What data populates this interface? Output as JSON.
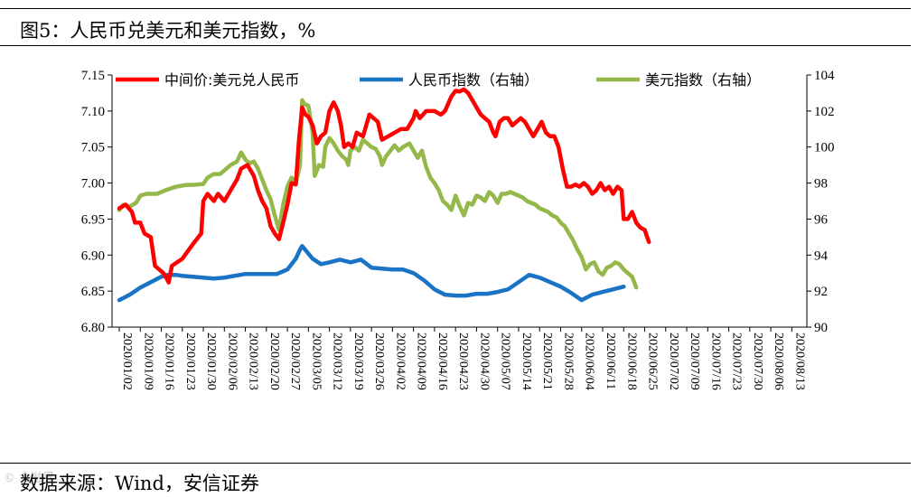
{
  "figure": {
    "title": "图5：人民币兑美元和美元指数，%",
    "source": "数据来源：Wind，安信证券",
    "watermark": "© 金融界"
  },
  "chart_data": {
    "type": "line",
    "title": "图5：人民币兑美元和美元指数，%",
    "y_left": {
      "min": 6.8,
      "max": 7.15,
      "ticks": [
        "6.80",
        "6.85",
        "6.90",
        "6.95",
        "7.00",
        "7.05",
        "7.10",
        "7.15"
      ]
    },
    "y_right": {
      "min": 90,
      "max": 104,
      "ticks": [
        "90",
        "92",
        "94",
        "96",
        "98",
        "100",
        "102",
        "104"
      ]
    },
    "x_ticks": [
      "2020/01/02",
      "2020/01/09",
      "2020/01/16",
      "2020/01/23",
      "2020/01/30",
      "2020/02/06",
      "2020/02/13",
      "2020/02/20",
      "2020/02/27",
      "2020/03/05",
      "2020/03/12",
      "2020/03/19",
      "2020/03/26",
      "2020/04/02",
      "2020/04/09",
      "2020/04/16",
      "2020/04/23",
      "2020/04/30",
      "2020/05/07",
      "2020/05/14",
      "2020/05/21",
      "2020/05/28",
      "2020/06/04",
      "2020/06/11",
      "2020/06/18",
      "2020/06/25",
      "2020/07/02",
      "2020/07/09",
      "2020/07/16",
      "2020/07/23",
      "2020/07/30",
      "2020/08/06",
      "2020/08/13"
    ],
    "series": [
      {
        "name": "中间价:美元兑人民币",
        "axis": "left",
        "color": "#ff0000",
        "points": [
          [
            0,
            6.965
          ],
          [
            0.3,
            6.97
          ],
          [
            0.6,
            6.96
          ],
          [
            0.75,
            6.945
          ],
          [
            1.0,
            6.945
          ],
          [
            1.2,
            6.93
          ],
          [
            1.5,
            6.925
          ],
          [
            1.7,
            6.885
          ],
          [
            1.9,
            6.88
          ],
          [
            2.1,
            6.875
          ],
          [
            2.25,
            6.868
          ],
          [
            2.35,
            6.862
          ],
          [
            2.5,
            6.885
          ],
          [
            3.0,
            6.895
          ],
          [
            3.5,
            6.915
          ],
          [
            3.9,
            6.93
          ],
          [
            4.0,
            6.975
          ],
          [
            4.2,
            6.985
          ],
          [
            4.5,
            6.975
          ],
          [
            4.7,
            6.985
          ],
          [
            5.0,
            6.975
          ],
          [
            5.3,
            6.99
          ],
          [
            5.6,
            7.005
          ],
          [
            5.8,
            7.02
          ],
          [
            6.1,
            7.025
          ],
          [
            6.4,
            7.01
          ],
          [
            6.6,
            6.99
          ],
          [
            6.8,
            6.975
          ],
          [
            7.0,
            6.965
          ],
          [
            7.2,
            6.94
          ],
          [
            7.4,
            6.93
          ],
          [
            7.6,
            6.922
          ],
          [
            7.8,
            6.945
          ],
          [
            8.0,
            6.97
          ],
          [
            8.2,
            7.0
          ],
          [
            8.4,
            6.998
          ],
          [
            8.55,
            7.06
          ],
          [
            8.7,
            7.105
          ],
          [
            8.85,
            7.095
          ],
          [
            9.0,
            7.092
          ],
          [
            9.2,
            7.08
          ],
          [
            9.4,
            7.055
          ],
          [
            9.6,
            7.065
          ],
          [
            9.8,
            7.07
          ],
          [
            10.0,
            7.1
          ],
          [
            10.2,
            7.112
          ],
          [
            10.4,
            7.1
          ],
          [
            10.55,
            7.08
          ],
          [
            10.7,
            7.05
          ],
          [
            10.9,
            7.055
          ],
          [
            11.1,
            7.05
          ],
          [
            11.3,
            7.07
          ],
          [
            11.6,
            7.065
          ],
          [
            11.9,
            7.095
          ],
          [
            12.1,
            7.09
          ],
          [
            12.3,
            7.085
          ],
          [
            12.5,
            7.06
          ],
          [
            12.8,
            7.065
          ],
          [
            13.1,
            7.07
          ],
          [
            13.4,
            7.075
          ],
          [
            13.7,
            7.075
          ],
          [
            14.0,
            7.09
          ],
          [
            14.1,
            7.1
          ],
          [
            14.3,
            7.09
          ],
          [
            14.6,
            7.1
          ],
          [
            15.0,
            7.1
          ],
          [
            15.3,
            7.095
          ],
          [
            15.5,
            7.1
          ],
          [
            15.8,
            7.12
          ],
          [
            16.0,
            7.128
          ],
          [
            16.2,
            7.127
          ],
          [
            16.4,
            7.13
          ],
          [
            16.6,
            7.125
          ],
          [
            16.8,
            7.115
          ],
          [
            17.0,
            7.105
          ],
          [
            17.2,
            7.095
          ],
          [
            17.4,
            7.09
          ],
          [
            17.6,
            7.085
          ],
          [
            17.8,
            7.07
          ],
          [
            17.9,
            7.065
          ],
          [
            18.1,
            7.085
          ],
          [
            18.3,
            7.09
          ],
          [
            18.5,
            7.09
          ],
          [
            18.7,
            7.08
          ],
          [
            18.9,
            7.085
          ],
          [
            19.1,
            7.09
          ],
          [
            19.3,
            7.085
          ],
          [
            19.5,
            7.075
          ],
          [
            19.7,
            7.065
          ],
          [
            19.9,
            7.075
          ],
          [
            20.1,
            7.085
          ],
          [
            20.3,
            7.07
          ],
          [
            20.5,
            7.065
          ],
          [
            20.7,
            7.065
          ],
          [
            20.9,
            7.05
          ],
          [
            21.1,
            7.02
          ],
          [
            21.3,
            6.995
          ],
          [
            21.5,
            6.995
          ],
          [
            21.7,
            6.998
          ],
          [
            21.9,
            6.995
          ],
          [
            22.1,
            7.0
          ],
          [
            22.3,
            6.995
          ],
          [
            22.5,
            6.985
          ],
          [
            22.7,
            6.99
          ],
          [
            22.9,
            7.0
          ],
          [
            23.1,
            6.99
          ],
          [
            23.3,
            6.995
          ],
          [
            23.5,
            6.985
          ],
          [
            23.7,
            6.995
          ],
          [
            23.9,
            6.99
          ],
          [
            24.0,
            6.95
          ],
          [
            24.2,
            6.95
          ],
          [
            24.4,
            6.96
          ],
          [
            24.6,
            6.945
          ],
          [
            24.8,
            6.938
          ],
          [
            25.0,
            6.935
          ],
          [
            25.2,
            6.918
          ]
        ]
      },
      {
        "name": "人民币指数（右轴）",
        "axis": "right",
        "color": "#1a73c4",
        "points": [
          [
            0,
            91.5
          ],
          [
            0.5,
            91.8
          ],
          [
            1.0,
            92.2
          ],
          [
            1.5,
            92.5
          ],
          [
            2.0,
            92.8
          ],
          [
            2.3,
            92.9
          ],
          [
            2.7,
            92.9
          ],
          [
            3.0,
            92.85
          ],
          [
            3.5,
            92.8
          ],
          [
            4.0,
            92.75
          ],
          [
            4.5,
            92.7
          ],
          [
            5.0,
            92.75
          ],
          [
            5.5,
            92.85
          ],
          [
            6.0,
            92.95
          ],
          [
            6.5,
            92.95
          ],
          [
            7.0,
            92.95
          ],
          [
            7.5,
            92.95
          ],
          [
            8.0,
            93.2
          ],
          [
            8.4,
            93.8
          ],
          [
            8.6,
            94.3
          ],
          [
            8.7,
            94.5
          ],
          [
            9.2,
            93.8
          ],
          [
            9.6,
            93.5
          ],
          [
            10.0,
            93.6
          ],
          [
            10.5,
            93.75
          ],
          [
            11.0,
            93.6
          ],
          [
            11.5,
            93.75
          ],
          [
            12.0,
            93.3
          ],
          [
            12.5,
            93.25
          ],
          [
            13.0,
            93.2
          ],
          [
            13.5,
            93.2
          ],
          [
            14.0,
            93.0
          ],
          [
            14.5,
            92.6
          ],
          [
            15.0,
            92.1
          ],
          [
            15.5,
            91.8
          ],
          [
            16.0,
            91.75
          ],
          [
            16.5,
            91.75
          ],
          [
            17.0,
            91.85
          ],
          [
            17.5,
            91.85
          ],
          [
            18.0,
            91.95
          ],
          [
            18.5,
            92.1
          ],
          [
            19.0,
            92.5
          ],
          [
            19.5,
            92.9
          ],
          [
            20.0,
            92.75
          ],
          [
            20.5,
            92.5
          ],
          [
            21.0,
            92.25
          ],
          [
            21.5,
            91.9
          ],
          [
            22.0,
            91.5
          ],
          [
            22.5,
            91.8
          ],
          [
            23.0,
            91.95
          ],
          [
            23.5,
            92.1
          ],
          [
            24.0,
            92.25
          ]
        ]
      },
      {
        "name": "美元指数（右轴）",
        "axis": "right",
        "color": "#94b84a",
        "points": [
          [
            0,
            96.5
          ],
          [
            0.2,
            96.8
          ],
          [
            0.5,
            96.7
          ],
          [
            0.8,
            96.9
          ],
          [
            1.0,
            97.3
          ],
          [
            1.3,
            97.4
          ],
          [
            1.8,
            97.4
          ],
          [
            2.0,
            97.5
          ],
          [
            2.2,
            97.6
          ],
          [
            2.7,
            97.8
          ],
          [
            3.2,
            97.9
          ],
          [
            3.5,
            97.9
          ],
          [
            4.0,
            97.95
          ],
          [
            4.2,
            98.3
          ],
          [
            4.5,
            98.5
          ],
          [
            4.8,
            98.5
          ],
          [
            5.0,
            98.7
          ],
          [
            5.3,
            99.0
          ],
          [
            5.6,
            99.2
          ],
          [
            5.8,
            99.7
          ],
          [
            6.0,
            99.3
          ],
          [
            6.2,
            99.1
          ],
          [
            6.4,
            99.2
          ],
          [
            6.6,
            98.8
          ],
          [
            6.8,
            98.2
          ],
          [
            7.0,
            97.6
          ],
          [
            7.2,
            97.1
          ],
          [
            7.4,
            96.2
          ],
          [
            7.6,
            95.4
          ],
          [
            7.8,
            96.8
          ],
          [
            8.0,
            97.8
          ],
          [
            8.2,
            98.3
          ],
          [
            8.4,
            98.0
          ],
          [
            8.6,
            99.0
          ],
          [
            8.7,
            102.6
          ],
          [
            8.8,
            102.4
          ],
          [
            9.0,
            102.3
          ],
          [
            9.2,
            100.8
          ],
          [
            9.3,
            98.4
          ],
          [
            9.5,
            99.0
          ],
          [
            9.7,
            98.9
          ],
          [
            9.8,
            100.0
          ],
          [
            10.0,
            100.5
          ],
          [
            10.2,
            100.2
          ],
          [
            10.4,
            99.8
          ],
          [
            10.6,
            99.5
          ],
          [
            10.8,
            99.3
          ],
          [
            10.9,
            99.0
          ],
          [
            11.0,
            99.8
          ],
          [
            11.2,
            100.0
          ],
          [
            11.4,
            99.8
          ],
          [
            11.6,
            100.4
          ],
          [
            11.8,
            100.2
          ],
          [
            12.0,
            100.0
          ],
          [
            12.2,
            99.9
          ],
          [
            12.4,
            99.5
          ],
          [
            12.5,
            99.0
          ],
          [
            12.7,
            99.5
          ],
          [
            12.9,
            99.8
          ],
          [
            13.1,
            100.1
          ],
          [
            13.3,
            99.8
          ],
          [
            13.5,
            100.0
          ],
          [
            13.8,
            100.2
          ],
          [
            14.0,
            99.8
          ],
          [
            14.2,
            99.4
          ],
          [
            14.4,
            99.8
          ],
          [
            14.6,
            98.9
          ],
          [
            14.8,
            98.3
          ],
          [
            15.0,
            98.0
          ],
          [
            15.2,
            97.6
          ],
          [
            15.4,
            97.0
          ],
          [
            15.6,
            96.8
          ],
          [
            15.8,
            96.5
          ],
          [
            16.0,
            97.3
          ],
          [
            16.2,
            96.7
          ],
          [
            16.4,
            96.2
          ],
          [
            16.6,
            96.9
          ],
          [
            16.8,
            96.8
          ],
          [
            17.0,
            97.3
          ],
          [
            17.2,
            97.2
          ],
          [
            17.4,
            97.0
          ],
          [
            17.6,
            97.5
          ],
          [
            17.8,
            97.3
          ],
          [
            18.0,
            96.9
          ],
          [
            18.2,
            97.4
          ],
          [
            18.4,
            97.4
          ],
          [
            18.6,
            97.5
          ],
          [
            18.8,
            97.4
          ],
          [
            19.0,
            97.3
          ],
          [
            19.2,
            97.2
          ],
          [
            19.4,
            97.0
          ],
          [
            19.6,
            96.9
          ],
          [
            19.8,
            96.8
          ],
          [
            20.0,
            96.6
          ],
          [
            20.2,
            96.5
          ],
          [
            20.4,
            96.4
          ],
          [
            20.6,
            96.2
          ],
          [
            20.8,
            96.1
          ],
          [
            21.0,
            95.8
          ],
          [
            21.2,
            95.6
          ],
          [
            21.4,
            95.2
          ],
          [
            21.6,
            94.8
          ],
          [
            21.8,
            94.3
          ],
          [
            22.0,
            93.9
          ],
          [
            22.2,
            93.2
          ],
          [
            22.4,
            93.5
          ],
          [
            22.6,
            93.6
          ],
          [
            22.8,
            93.1
          ],
          [
            23.0,
            92.9
          ],
          [
            23.2,
            93.3
          ],
          [
            23.4,
            93.4
          ],
          [
            23.6,
            93.6
          ],
          [
            23.8,
            93.5
          ],
          [
            24.0,
            93.2
          ],
          [
            24.2,
            93.0
          ],
          [
            24.4,
            92.8
          ],
          [
            24.6,
            92.2
          ]
        ]
      }
    ],
    "legend_position": "top"
  }
}
